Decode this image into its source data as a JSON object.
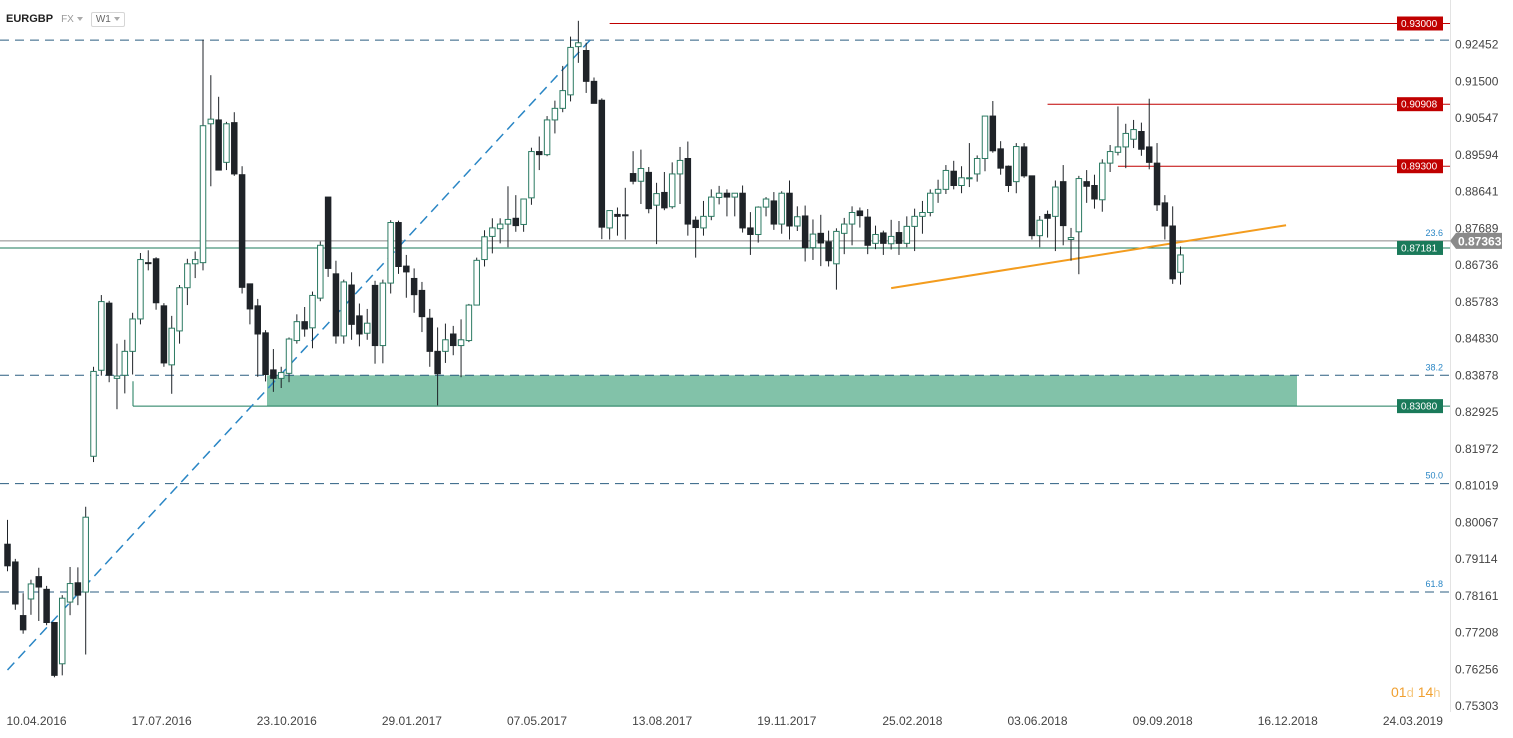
{
  "header": {
    "symbol": "EURGBP",
    "market": "FX",
    "timeframe": "W1"
  },
  "countdown": {
    "days": "01",
    "day_unit": "d",
    "hours": "14",
    "hour_unit": "h"
  },
  "colors": {
    "up": "#ffffff",
    "down": "#1f2328",
    "wick": "#1f2328",
    "up_border": "#2b7a62",
    "resistance": "#c00000",
    "current_price": "#8a8a8a",
    "green_line": "#1a7a5a",
    "zone": "#74bba0",
    "trendline_blue": "#2a86c5",
    "trendline_orange": "#f39c1e",
    "dashed": "#2b5e80",
    "fib_text": "#2a86c5"
  },
  "chart_data": {
    "type": "candlestick",
    "x_tick_labels": [
      "10.04.2016",
      "17.07.2016",
      "23.10.2016",
      "29.01.2017",
      "07.05.2017",
      "13.08.2017",
      "19.11.2017",
      "25.02.2018",
      "03.06.2018",
      "09.09.2018",
      "16.12.2018",
      "24.03.2019"
    ],
    "y_tick_labels": [
      "0.92452",
      "0.91500",
      "0.90547",
      "0.89594",
      "0.88641",
      "0.87689",
      "0.86736",
      "0.85783",
      "0.84830",
      "0.83878",
      "0.82925",
      "0.81972",
      "0.81019",
      "0.80067",
      "0.79114",
      "0.78161",
      "0.77208",
      "0.76256",
      "0.75303"
    ],
    "ylim": [
      0.7515,
      0.9335
    ],
    "price_labels": [
      {
        "text": "0.93000",
        "value": 0.93,
        "style": "resistance"
      },
      {
        "text": "0.90908",
        "value": 0.90908,
        "style": "resistance"
      },
      {
        "text": "0.89300",
        "value": 0.893,
        "style": "resistance"
      },
      {
        "text": "0.87363",
        "value": 0.87363,
        "style": "current"
      },
      {
        "text": "0.87181",
        "value": 0.87181,
        "style": "green"
      },
      {
        "text": "0.83080",
        "value": 0.8308,
        "style": "green"
      }
    ],
    "fib_levels": [
      {
        "label": "23.6",
        "value": 0.8736
      },
      {
        "label": "38.2",
        "value": 0.8388
      },
      {
        "label": "50.0",
        "value": 0.8107
      },
      {
        "label": "61.8",
        "value": 0.7826
      }
    ],
    "dashed_levels": [
      0.9257,
      0.8718,
      0.8388,
      0.8107,
      0.7826
    ],
    "support_zone": {
      "top": 0.8388,
      "bottom": 0.8308
    },
    "current_price": 0.87363,
    "candles": [
      {
        "o": 0.795,
        "h": 0.8013,
        "l": 0.788,
        "c": 0.7894
      },
      {
        "o": 0.7904,
        "h": 0.7912,
        "l": 0.778,
        "c": 0.7795
      },
      {
        "o": 0.7765,
        "h": 0.7823,
        "l": 0.7718,
        "c": 0.7728
      },
      {
        "o": 0.7808,
        "h": 0.7858,
        "l": 0.7767,
        "c": 0.7847
      },
      {
        "o": 0.7866,
        "h": 0.7889,
        "l": 0.7751,
        "c": 0.7839
      },
      {
        "o": 0.7833,
        "h": 0.7842,
        "l": 0.774,
        "c": 0.7747
      },
      {
        "o": 0.7747,
        "h": 0.7747,
        "l": 0.7605,
        "c": 0.761
      },
      {
        "o": 0.764,
        "h": 0.7818,
        "l": 0.761,
        "c": 0.781
      },
      {
        "o": 0.78,
        "h": 0.7891,
        "l": 0.7766,
        "c": 0.7848
      },
      {
        "o": 0.785,
        "h": 0.789,
        "l": 0.7792,
        "c": 0.7818
      },
      {
        "o": 0.7826,
        "h": 0.8047,
        "l": 0.7664,
        "c": 0.802
      },
      {
        "o": 0.8178,
        "h": 0.841,
        "l": 0.8163,
        "c": 0.8398
      },
      {
        "o": 0.8401,
        "h": 0.8596,
        "l": 0.8387,
        "c": 0.8579
      },
      {
        "o": 0.8575,
        "h": 0.8581,
        "l": 0.837,
        "c": 0.8388
      },
      {
        "o": 0.838,
        "h": 0.847,
        "l": 0.83,
        "c": 0.8386
      },
      {
        "o": 0.8388,
        "h": 0.848,
        "l": 0.8341,
        "c": 0.845
      },
      {
        "o": 0.845,
        "h": 0.855,
        "l": 0.839,
        "c": 0.8534
      },
      {
        "o": 0.8534,
        "h": 0.8705,
        "l": 0.852,
        "c": 0.8688
      },
      {
        "o": 0.868,
        "h": 0.8712,
        "l": 0.866,
        "c": 0.8678
      },
      {
        "o": 0.869,
        "h": 0.8694,
        "l": 0.8558,
        "c": 0.8576
      },
      {
        "o": 0.8568,
        "h": 0.8575,
        "l": 0.841,
        "c": 0.842
      },
      {
        "o": 0.8415,
        "h": 0.8542,
        "l": 0.834,
        "c": 0.851
      },
      {
        "o": 0.8503,
        "h": 0.8622,
        "l": 0.847,
        "c": 0.8615
      },
      {
        "o": 0.8615,
        "h": 0.869,
        "l": 0.857,
        "c": 0.8677
      },
      {
        "o": 0.8677,
        "h": 0.8709,
        "l": 0.864,
        "c": 0.8688
      },
      {
        "o": 0.868,
        "h": 0.9258,
        "l": 0.866,
        "c": 0.9035
      },
      {
        "o": 0.904,
        "h": 0.9166,
        "l": 0.8878,
        "c": 0.9052
      },
      {
        "o": 0.905,
        "h": 0.911,
        "l": 0.893,
        "c": 0.892
      },
      {
        "o": 0.894,
        "h": 0.9045,
        "l": 0.892,
        "c": 0.904
      },
      {
        "o": 0.9043,
        "h": 0.907,
        "l": 0.8905,
        "c": 0.891
      },
      {
        "o": 0.8908,
        "h": 0.893,
        "l": 0.86,
        "c": 0.8616
      },
      {
        "o": 0.8625,
        "h": 0.8625,
        "l": 0.852,
        "c": 0.856
      },
      {
        "o": 0.8568,
        "h": 0.8586,
        "l": 0.8384,
        "c": 0.8495
      },
      {
        "o": 0.8498,
        "h": 0.8505,
        "l": 0.8372,
        "c": 0.839
      },
      {
        "o": 0.8402,
        "h": 0.8456,
        "l": 0.8345,
        "c": 0.838
      },
      {
        "o": 0.838,
        "h": 0.841,
        "l": 0.8355,
        "c": 0.8395
      },
      {
        "o": 0.8393,
        "h": 0.8486,
        "l": 0.837,
        "c": 0.8482
      },
      {
        "o": 0.8478,
        "h": 0.8546,
        "l": 0.847,
        "c": 0.8527
      },
      {
        "o": 0.8527,
        "h": 0.8565,
        "l": 0.8488,
        "c": 0.8508
      },
      {
        "o": 0.8511,
        "h": 0.8605,
        "l": 0.8458,
        "c": 0.8595
      },
      {
        "o": 0.8588,
        "h": 0.8735,
        "l": 0.858,
        "c": 0.8725
      },
      {
        "o": 0.885,
        "h": 0.885,
        "l": 0.8643,
        "c": 0.8665
      },
      {
        "o": 0.8651,
        "h": 0.8685,
        "l": 0.847,
        "c": 0.849
      },
      {
        "o": 0.849,
        "h": 0.8636,
        "l": 0.847,
        "c": 0.863
      },
      {
        "o": 0.8622,
        "h": 0.8655,
        "l": 0.848,
        "c": 0.852
      },
      {
        "o": 0.8542,
        "h": 0.8574,
        "l": 0.8463,
        "c": 0.8495
      },
      {
        "o": 0.8497,
        "h": 0.856,
        "l": 0.848,
        "c": 0.8523
      },
      {
        "o": 0.8621,
        "h": 0.8633,
        "l": 0.8418,
        "c": 0.8465
      },
      {
        "o": 0.8465,
        "h": 0.8636,
        "l": 0.8419,
        "c": 0.8627
      },
      {
        "o": 0.8627,
        "h": 0.879,
        "l": 0.86,
        "c": 0.8784
      },
      {
        "o": 0.8784,
        "h": 0.8789,
        "l": 0.8651,
        "c": 0.867
      },
      {
        "o": 0.8671,
        "h": 0.87,
        "l": 0.8589,
        "c": 0.8656
      },
      {
        "o": 0.8639,
        "h": 0.8665,
        "l": 0.855,
        "c": 0.8597
      },
      {
        "o": 0.8608,
        "h": 0.863,
        "l": 0.85,
        "c": 0.854
      },
      {
        "o": 0.8536,
        "h": 0.856,
        "l": 0.841,
        "c": 0.845
      },
      {
        "o": 0.845,
        "h": 0.8512,
        "l": 0.831,
        "c": 0.8392
      },
      {
        "o": 0.845,
        "h": 0.8522,
        "l": 0.842,
        "c": 0.848
      },
      {
        "o": 0.8495,
        "h": 0.8516,
        "l": 0.844,
        "c": 0.8465
      },
      {
        "o": 0.8465,
        "h": 0.8533,
        "l": 0.8383,
        "c": 0.848
      },
      {
        "o": 0.8478,
        "h": 0.8573,
        "l": 0.8474,
        "c": 0.857
      },
      {
        "o": 0.857,
        "h": 0.8693,
        "l": 0.857,
        "c": 0.8686
      },
      {
        "o": 0.8688,
        "h": 0.8764,
        "l": 0.867,
        "c": 0.8747
      },
      {
        "o": 0.8748,
        "h": 0.8795,
        "l": 0.8704,
        "c": 0.877
      },
      {
        "o": 0.8768,
        "h": 0.8795,
        "l": 0.873,
        "c": 0.878
      },
      {
        "o": 0.878,
        "h": 0.8878,
        "l": 0.872,
        "c": 0.8792
      },
      {
        "o": 0.8795,
        "h": 0.8855,
        "l": 0.876,
        "c": 0.8776
      },
      {
        "o": 0.8779,
        "h": 0.8846,
        "l": 0.876,
        "c": 0.8845
      },
      {
        "o": 0.8848,
        "h": 0.8978,
        "l": 0.883,
        "c": 0.8968
      },
      {
        "o": 0.8968,
        "h": 0.9007,
        "l": 0.892,
        "c": 0.896
      },
      {
        "o": 0.896,
        "h": 0.906,
        "l": 0.8956,
        "c": 0.905
      },
      {
        "o": 0.905,
        "h": 0.91,
        "l": 0.9015,
        "c": 0.908
      },
      {
        "o": 0.908,
        "h": 0.919,
        "l": 0.907,
        "c": 0.9126
      },
      {
        "o": 0.9115,
        "h": 0.9266,
        "l": 0.9098,
        "c": 0.9238
      },
      {
        "o": 0.924,
        "h": 0.9307,
        "l": 0.9198,
        "c": 0.925
      },
      {
        "o": 0.923,
        "h": 0.925,
        "l": 0.912,
        "c": 0.915
      },
      {
        "o": 0.915,
        "h": 0.916,
        "l": 0.9093,
        "c": 0.9093
      },
      {
        "o": 0.9101,
        "h": 0.9106,
        "l": 0.8741,
        "c": 0.8772
      },
      {
        "o": 0.877,
        "h": 0.8816,
        "l": 0.874,
        "c": 0.8815
      },
      {
        "o": 0.8805,
        "h": 0.8823,
        "l": 0.875,
        "c": 0.88
      },
      {
        "o": 0.8804,
        "h": 0.8874,
        "l": 0.874,
        "c": 0.8803
      },
      {
        "o": 0.8911,
        "h": 0.8969,
        "l": 0.8883,
        "c": 0.8891
      },
      {
        "o": 0.8891,
        "h": 0.8973,
        "l": 0.8832,
        "c": 0.8924
      },
      {
        "o": 0.8914,
        "h": 0.8928,
        "l": 0.8808,
        "c": 0.882
      },
      {
        "o": 0.8829,
        "h": 0.8887,
        "l": 0.8728,
        "c": 0.8859
      },
      {
        "o": 0.8862,
        "h": 0.8915,
        "l": 0.8816,
        "c": 0.8822
      },
      {
        "o": 0.8825,
        "h": 0.894,
        "l": 0.882,
        "c": 0.891
      },
      {
        "o": 0.891,
        "h": 0.898,
        "l": 0.8832,
        "c": 0.8945
      },
      {
        "o": 0.895,
        "h": 0.8994,
        "l": 0.875,
        "c": 0.878
      },
      {
        "o": 0.879,
        "h": 0.88,
        "l": 0.8693,
        "c": 0.8771
      },
      {
        "o": 0.877,
        "h": 0.884,
        "l": 0.875,
        "c": 0.88
      },
      {
        "o": 0.88,
        "h": 0.887,
        "l": 0.879,
        "c": 0.885
      },
      {
        "o": 0.8849,
        "h": 0.8879,
        "l": 0.8831,
        "c": 0.886
      },
      {
        "o": 0.886,
        "h": 0.887,
        "l": 0.88,
        "c": 0.885
      },
      {
        "o": 0.885,
        "h": 0.886,
        "l": 0.88,
        "c": 0.886
      },
      {
        "o": 0.886,
        "h": 0.888,
        "l": 0.8758,
        "c": 0.877
      },
      {
        "o": 0.877,
        "h": 0.8811,
        "l": 0.87,
        "c": 0.8753
      },
      {
        "o": 0.8753,
        "h": 0.8826,
        "l": 0.8732,
        "c": 0.8824
      },
      {
        "o": 0.8824,
        "h": 0.885,
        "l": 0.88,
        "c": 0.8845
      },
      {
        "o": 0.884,
        "h": 0.8863,
        "l": 0.8765,
        "c": 0.878
      },
      {
        "o": 0.878,
        "h": 0.8865,
        "l": 0.8755,
        "c": 0.886
      },
      {
        "o": 0.886,
        "h": 0.8893,
        "l": 0.874,
        "c": 0.8775
      },
      {
        "o": 0.8775,
        "h": 0.8826,
        "l": 0.8762,
        "c": 0.8799
      },
      {
        "o": 0.8801,
        "h": 0.8828,
        "l": 0.8683,
        "c": 0.8719
      },
      {
        "o": 0.8719,
        "h": 0.8792,
        "l": 0.8687,
        "c": 0.8754
      },
      {
        "o": 0.8756,
        "h": 0.8804,
        "l": 0.8671,
        "c": 0.8731
      },
      {
        "o": 0.8734,
        "h": 0.8763,
        "l": 0.867,
        "c": 0.8685
      },
      {
        "o": 0.8677,
        "h": 0.8769,
        "l": 0.861,
        "c": 0.8761
      },
      {
        "o": 0.8756,
        "h": 0.8796,
        "l": 0.8702,
        "c": 0.878
      },
      {
        "o": 0.878,
        "h": 0.8826,
        "l": 0.8725,
        "c": 0.881
      },
      {
        "o": 0.8814,
        "h": 0.8823,
        "l": 0.8771,
        "c": 0.8802
      },
      {
        "o": 0.8798,
        "h": 0.8819,
        "l": 0.8702,
        "c": 0.8725
      },
      {
        "o": 0.873,
        "h": 0.8776,
        "l": 0.8715,
        "c": 0.8753
      },
      {
        "o": 0.8757,
        "h": 0.8763,
        "l": 0.87,
        "c": 0.873
      },
      {
        "o": 0.8729,
        "h": 0.8791,
        "l": 0.8714,
        "c": 0.8748
      },
      {
        "o": 0.8758,
        "h": 0.8788,
        "l": 0.87,
        "c": 0.873
      },
      {
        "o": 0.873,
        "h": 0.88,
        "l": 0.872,
        "c": 0.8774
      },
      {
        "o": 0.8774,
        "h": 0.882,
        "l": 0.871,
        "c": 0.88
      },
      {
        "o": 0.88,
        "h": 0.884,
        "l": 0.8755,
        "c": 0.881
      },
      {
        "o": 0.881,
        "h": 0.887,
        "l": 0.88,
        "c": 0.886
      },
      {
        "o": 0.886,
        "h": 0.8895,
        "l": 0.8835,
        "c": 0.887
      },
      {
        "o": 0.887,
        "h": 0.8933,
        "l": 0.8858,
        "c": 0.8919
      },
      {
        "o": 0.8917,
        "h": 0.8944,
        "l": 0.887,
        "c": 0.888
      },
      {
        "o": 0.888,
        "h": 0.893,
        "l": 0.886,
        "c": 0.89
      },
      {
        "o": 0.89,
        "h": 0.899,
        "l": 0.8876,
        "c": 0.89
      },
      {
        "o": 0.891,
        "h": 0.8958,
        "l": 0.889,
        "c": 0.895
      },
      {
        "o": 0.895,
        "h": 0.906,
        "l": 0.8917,
        "c": 0.906
      },
      {
        "o": 0.906,
        "h": 0.9099,
        "l": 0.8965,
        "c": 0.897
      },
      {
        "o": 0.8975,
        "h": 0.8995,
        "l": 0.8908,
        "c": 0.8925
      },
      {
        "o": 0.893,
        "h": 0.8932,
        "l": 0.8863,
        "c": 0.888
      },
      {
        "o": 0.889,
        "h": 0.899,
        "l": 0.886,
        "c": 0.8981
      },
      {
        "o": 0.898,
        "h": 0.899,
        "l": 0.89,
        "c": 0.8905
      },
      {
        "o": 0.8905,
        "h": 0.8905,
        "l": 0.874,
        "c": 0.875
      },
      {
        "o": 0.875,
        "h": 0.8801,
        "l": 0.872,
        "c": 0.879
      },
      {
        "o": 0.8805,
        "h": 0.8815,
        "l": 0.8745,
        "c": 0.8795
      },
      {
        "o": 0.88,
        "h": 0.8893,
        "l": 0.871,
        "c": 0.8876
      },
      {
        "o": 0.889,
        "h": 0.8933,
        "l": 0.8725,
        "c": 0.8776
      },
      {
        "o": 0.874,
        "h": 0.877,
        "l": 0.8685,
        "c": 0.8745
      },
      {
        "o": 0.876,
        "h": 0.8905,
        "l": 0.865,
        "c": 0.8898
      },
      {
        "o": 0.889,
        "h": 0.892,
        "l": 0.8835,
        "c": 0.8878
      },
      {
        "o": 0.888,
        "h": 0.8908,
        "l": 0.882,
        "c": 0.8845
      },
      {
        "o": 0.8843,
        "h": 0.8948,
        "l": 0.8812,
        "c": 0.8938
      },
      {
        "o": 0.8938,
        "h": 0.8985,
        "l": 0.8915,
        "c": 0.8968
      },
      {
        "o": 0.8966,
        "h": 0.9085,
        "l": 0.8958,
        "c": 0.898
      },
      {
        "o": 0.898,
        "h": 0.904,
        "l": 0.8925,
        "c": 0.9015
      },
      {
        "o": 0.9,
        "h": 0.905,
        "l": 0.8977,
        "c": 0.9025
      },
      {
        "o": 0.902,
        "h": 0.9043,
        "l": 0.8957,
        "c": 0.8974
      },
      {
        "o": 0.898,
        "h": 0.9105,
        "l": 0.8922,
        "c": 0.894
      },
      {
        "o": 0.8938,
        "h": 0.899,
        "l": 0.8814,
        "c": 0.883
      },
      {
        "o": 0.8835,
        "h": 0.8855,
        "l": 0.874,
        "c": 0.8775
      },
      {
        "o": 0.8775,
        "h": 0.8826,
        "l": 0.8625,
        "c": 0.8638
      },
      {
        "o": 0.8655,
        "h": 0.8722,
        "l": 0.8623,
        "c": 0.87
      }
    ]
  },
  "annotations": [
    {
      "type": "trendline",
      "color": "blue",
      "dashed": true,
      "from": {
        "i": 0,
        "v": 0.7624
      },
      "to": {
        "i": 74.5,
        "v": 0.9257
      }
    },
    {
      "type": "trendline",
      "color": "orange",
      "dashed": false,
      "from": {
        "i": 113,
        "v": 0.8614
      },
      "to": {
        "i": 163.5,
        "v": 0.8777
      }
    },
    {
      "type": "segment",
      "color": "red",
      "from_i": 77,
      "value": 0.93
    },
    {
      "type": "segment",
      "color": "red",
      "from_i": 133,
      "value": 0.90908
    },
    {
      "type": "segment",
      "color": "red",
      "from_i": 142,
      "value": 0.893
    },
    {
      "type": "segment",
      "color": "green",
      "from_i": 15,
      "value": 0.8308
    }
  ]
}
